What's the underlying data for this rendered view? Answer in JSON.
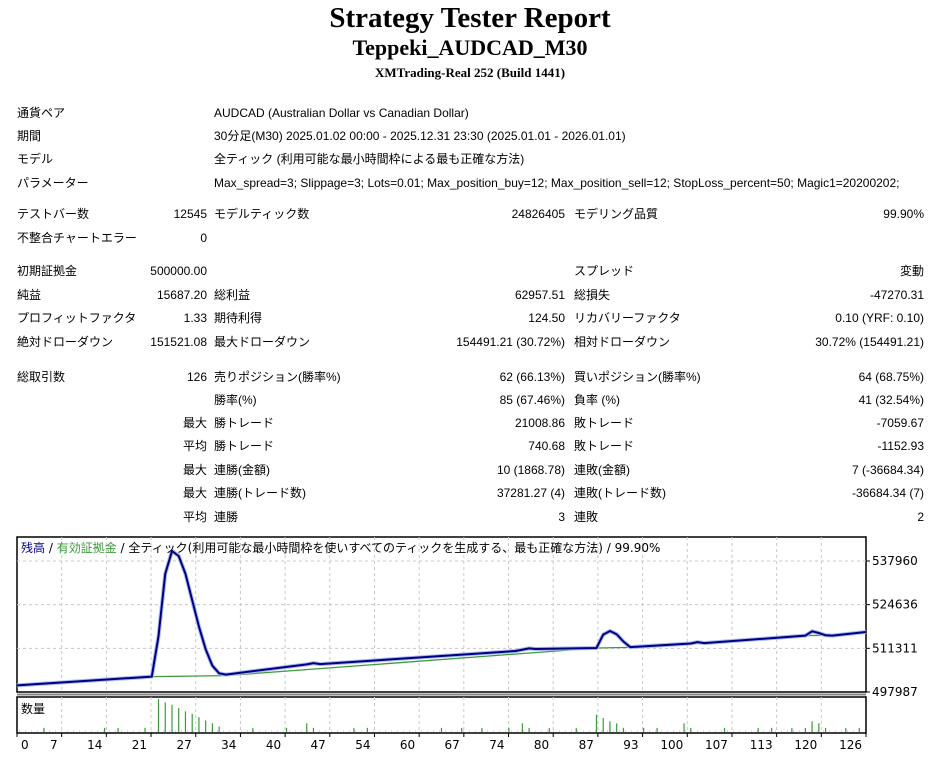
{
  "header": {
    "title": "Strategy Tester Report",
    "subtitle": "Teppeki_AUDCAD_M30",
    "server": "XMTrading-Real 252 (Build 1441)"
  },
  "info": [
    {
      "label": "通貨ペア",
      "value": "AUDCAD (Australian Dollar vs Canadian Dollar)"
    },
    {
      "label": "期間",
      "value": "30分足(M30) 2025.01.02 00:00 - 2025.12.31 23:30 (2025.01.01 - 2026.01.01)"
    },
    {
      "label": "モデル",
      "value": "全ティック (利用可能な最小時間枠による最も正確な方法)"
    },
    {
      "label": "パラメーター",
      "value": "Max_spread=3; Slippage=3; Lots=0.01; Max_position_buy=12; Max_position_sell=12; StopLoss_percent=50; Magic1=20200202;"
    }
  ],
  "stats": [
    {
      "l1": "テストバー数",
      "v1": "12545",
      "l2": "モデルティック数",
      "v2": "24826405",
      "l3": "モデリング品質",
      "v3": "99.90%"
    },
    {
      "l1": "不整合チャートエラー",
      "v1": "0",
      "l2": "",
      "v2": "",
      "l3": "",
      "v3": ""
    },
    {
      "l1": "初期証拠金",
      "v1": "500000.00",
      "l2": "",
      "v2": "",
      "l3": "スプレッド",
      "v3": "変動"
    },
    {
      "l1": "純益",
      "v1": "15687.20",
      "l2": "総利益",
      "v2": "62957.51",
      "l3": "総損失",
      "v3": "-47270.31"
    },
    {
      "l1": "プロフィットファクタ",
      "v1": "1.33",
      "l2": "期待利得",
      "v2": "124.50",
      "l3": "リカバリーファクタ",
      "v3": "0.10 (YRF: 0.10)"
    },
    {
      "l1": "絶対ドローダウン",
      "v1": "151521.08",
      "l2": "最大ドローダウン",
      "v2": "154491.21 (30.72%)",
      "l3": "相対ドローダウン",
      "v3": "30.72% (154491.21)"
    },
    {
      "l1": "総取引数",
      "v1": "126",
      "l2": "売りポジション(勝率%)",
      "v2": "62 (66.13%)",
      "l3": "買いポジション(勝率%)",
      "v3": "64 (68.75%)"
    },
    {
      "l1": "",
      "v1": "",
      "l2": "勝率(%)",
      "v2": "85 (67.46%)",
      "l3": "負率 (%)",
      "v3": "41 (32.54%)"
    },
    {
      "l1": "",
      "v1": "最大",
      "l2": "勝トレード",
      "v2": "21008.86",
      "l3": "敗トレード",
      "v3": "-7059.67"
    },
    {
      "l1": "",
      "v1": "平均",
      "l2": "勝トレード",
      "v2": "740.68",
      "l3": "敗トレード",
      "v3": "-1152.93"
    },
    {
      "l1": "",
      "v1": "最大",
      "l2": "連勝(金額)",
      "v2": "10 (1868.78)",
      "l3": "連敗(金額)",
      "v3": "7 (-36684.34)"
    },
    {
      "l1": "",
      "v1": "最大",
      "l2": "連勝(トレード数)",
      "v2": "37281.27 (4)",
      "l3": "連敗(トレード数)",
      "v3": "-36684.34 (7)"
    },
    {
      "l1": "",
      "v1": "平均",
      "l2": "連勝",
      "v2": "3",
      "l3": "連敗",
      "v3": "2"
    }
  ],
  "chart_data": {
    "type": "line",
    "legend": {
      "balance": "残高",
      "sep": " / ",
      "equity": "有効証拠金",
      "model": " / 全ティック(利用可能な最小時間枠を使いすべてのティックを生成する、最も正確な方法) / 99.90%"
    },
    "volume_label": "数量",
    "x_ticks": [
      0,
      7,
      14,
      21,
      27,
      34,
      40,
      47,
      54,
      60,
      67,
      74,
      80,
      87,
      93,
      100,
      107,
      113,
      120,
      126
    ],
    "y_ticks": [
      537960,
      524636,
      511311,
      497987
    ],
    "grid": true,
    "colors": {
      "balance": "#00007f",
      "balance_halo": "#a8b8f0",
      "equity": "#3c9a3c",
      "volume": "#3c9a3c"
    },
    "series": [
      {
        "name": "残高",
        "points": [
          [
            0,
            500000
          ],
          [
            20,
            502700
          ],
          [
            21,
            515000
          ],
          [
            22,
            534000
          ],
          [
            23,
            541000
          ],
          [
            24,
            539500
          ],
          [
            25,
            534000
          ],
          [
            26,
            526000
          ],
          [
            27,
            518000
          ],
          [
            28,
            511000
          ],
          [
            29,
            506000
          ],
          [
            30,
            503700
          ],
          [
            31,
            503300
          ],
          [
            43,
            506400
          ],
          [
            44,
            506800
          ],
          [
            45,
            506500
          ],
          [
            74,
            510500
          ],
          [
            76,
            511300
          ],
          [
            77,
            511100
          ],
          [
            86,
            511400
          ],
          [
            87,
            515500
          ],
          [
            88,
            516600
          ],
          [
            89,
            515600
          ],
          [
            90,
            513400
          ],
          [
            91,
            511700
          ],
          [
            100,
            512800
          ],
          [
            101,
            513200
          ],
          [
            102,
            512900
          ],
          [
            117,
            515200
          ],
          [
            118,
            516500
          ],
          [
            119,
            516000
          ],
          [
            120,
            515300
          ],
          [
            121,
            515200
          ],
          [
            126,
            516300
          ]
        ]
      },
      {
        "name": "有効証拠金",
        "points": [
          [
            20,
            502700
          ],
          [
            31,
            503000
          ],
          [
            86,
            511400
          ],
          [
            91,
            511600
          ],
          [
            117,
            515200
          ],
          [
            120,
            515300
          ]
        ]
      }
    ],
    "volume": [
      [
        4,
        1
      ],
      [
        13,
        1
      ],
      [
        15,
        1
      ],
      [
        19,
        1
      ],
      [
        21,
        8
      ],
      [
        22,
        7.2
      ],
      [
        23,
        6.6
      ],
      [
        24,
        5.8
      ],
      [
        25,
        5
      ],
      [
        26,
        4.4
      ],
      [
        27,
        3.6
      ],
      [
        28,
        2.8
      ],
      [
        29,
        2.1
      ],
      [
        30,
        1.3
      ],
      [
        35,
        1
      ],
      [
        40,
        1
      ],
      [
        43,
        2.1
      ],
      [
        44,
        1
      ],
      [
        50,
        1
      ],
      [
        52,
        1
      ],
      [
        63,
        1
      ],
      [
        66,
        1
      ],
      [
        69,
        1
      ],
      [
        73,
        1
      ],
      [
        75,
        2.1
      ],
      [
        76,
        1
      ],
      [
        79,
        1
      ],
      [
        83,
        1
      ],
      [
        86,
        4.2
      ],
      [
        87,
        3.4
      ],
      [
        88,
        2.6
      ],
      [
        89,
        2.1
      ],
      [
        90,
        1
      ],
      [
        93,
        1
      ],
      [
        95,
        1
      ],
      [
        99,
        2.1
      ],
      [
        100,
        1
      ],
      [
        105,
        1
      ],
      [
        110,
        1
      ],
      [
        112,
        1
      ],
      [
        115,
        1
      ],
      [
        117,
        1
      ],
      [
        118,
        2.6
      ],
      [
        119,
        2.1
      ],
      [
        120,
        1
      ],
      [
        123,
        1
      ],
      [
        125,
        1
      ]
    ]
  }
}
